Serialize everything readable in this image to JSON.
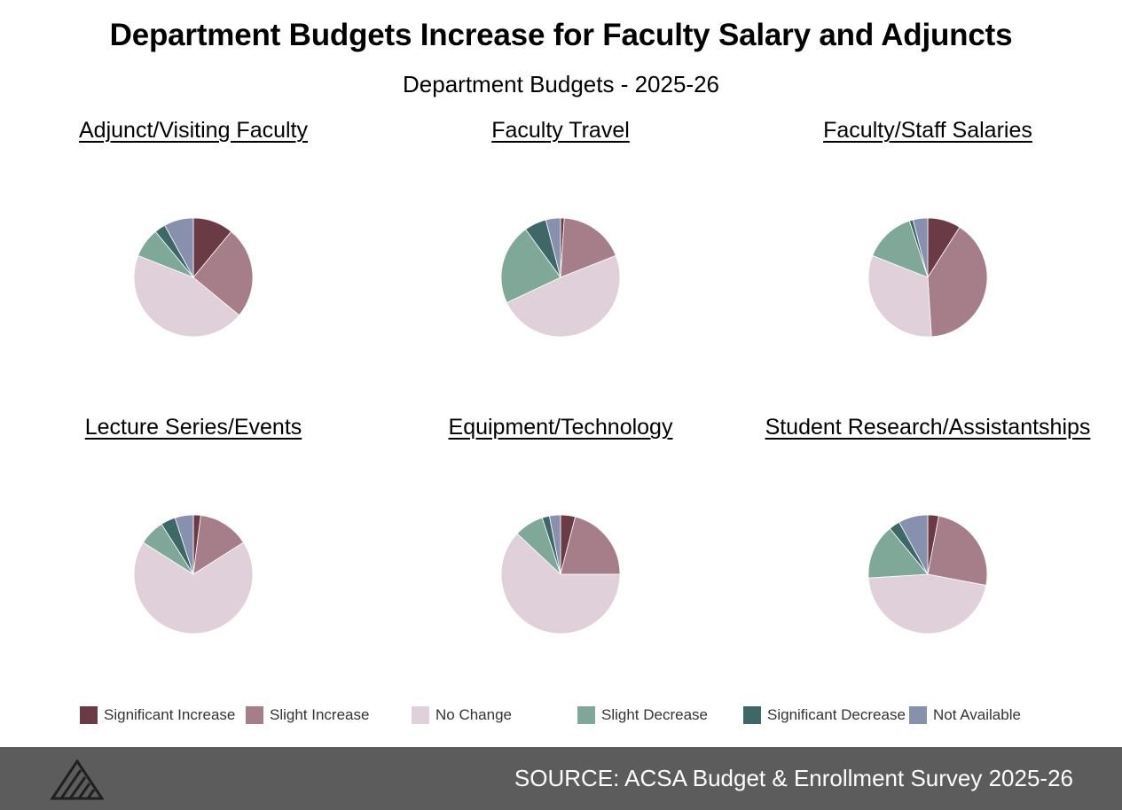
{
  "header": {
    "title": "Department Budgets Increase for Faculty Salary and Adjuncts",
    "subtitle": "Department Budgets - 2025-26"
  },
  "legend": [
    {
      "label": "Significant Increase",
      "color": "#6b3b45"
    },
    {
      "label": "Slight Increase",
      "color": "#a67e8a"
    },
    {
      "label": "No Change",
      "color": "#e0d0da"
    },
    {
      "label": "Slight Decrease",
      "color": "#7fa898"
    },
    {
      "label": "Significant Decrease",
      "color": "#3e6868"
    },
    {
      "label": "Not Available",
      "color": "#8790ad"
    }
  ],
  "chart_data": [
    {
      "type": "pie",
      "title": "Adjunct/Visiting Faculty",
      "categories": [
        "Significant Increase",
        "Slight Increase",
        "No Change",
        "Slight Decrease",
        "Significant Decrease",
        "Not Available"
      ],
      "values": [
        11,
        25,
        45,
        8,
        3,
        8
      ]
    },
    {
      "type": "pie",
      "title": "Faculty Travel",
      "categories": [
        "Significant Increase",
        "Slight Increase",
        "No Change",
        "Slight Decrease",
        "Significant Decrease",
        "Not Available"
      ],
      "values": [
        1,
        18,
        49,
        22,
        6,
        4
      ]
    },
    {
      "type": "pie",
      "title": "Faculty/Staff Salaries",
      "categories": [
        "Significant Increase",
        "Slight Increase",
        "No Change",
        "Slight Decrease",
        "Significant Decrease",
        "Not Available"
      ],
      "values": [
        9,
        40,
        32,
        14,
        1,
        4
      ]
    },
    {
      "type": "pie",
      "title": "Lecture Series/Events",
      "categories": [
        "Significant Increase",
        "Slight Increase",
        "No Change",
        "Slight Decrease",
        "Significant Decrease",
        "Not Available"
      ],
      "values": [
        2,
        14,
        68,
        7,
        4,
        5
      ]
    },
    {
      "type": "pie",
      "title": "Equipment/Technology",
      "categories": [
        "Significant Increase",
        "Slight Increase",
        "No Change",
        "Slight Decrease",
        "Significant Decrease",
        "Not Available"
      ],
      "values": [
        4,
        21,
        62,
        8,
        2,
        3
      ]
    },
    {
      "type": "pie",
      "title": "Student Research/Assistantships",
      "categories": [
        "Significant Increase",
        "Slight Increase",
        "No Change",
        "Slight Decrease",
        "Significant Decrease",
        "Not Available"
      ],
      "values": [
        3,
        25,
        46,
        15,
        3,
        8
      ]
    }
  ],
  "footer": {
    "source": "SOURCE: ACSA Budget & Enrollment Survey 2025-26",
    "logo_icon": "acsa-logo-icon"
  }
}
